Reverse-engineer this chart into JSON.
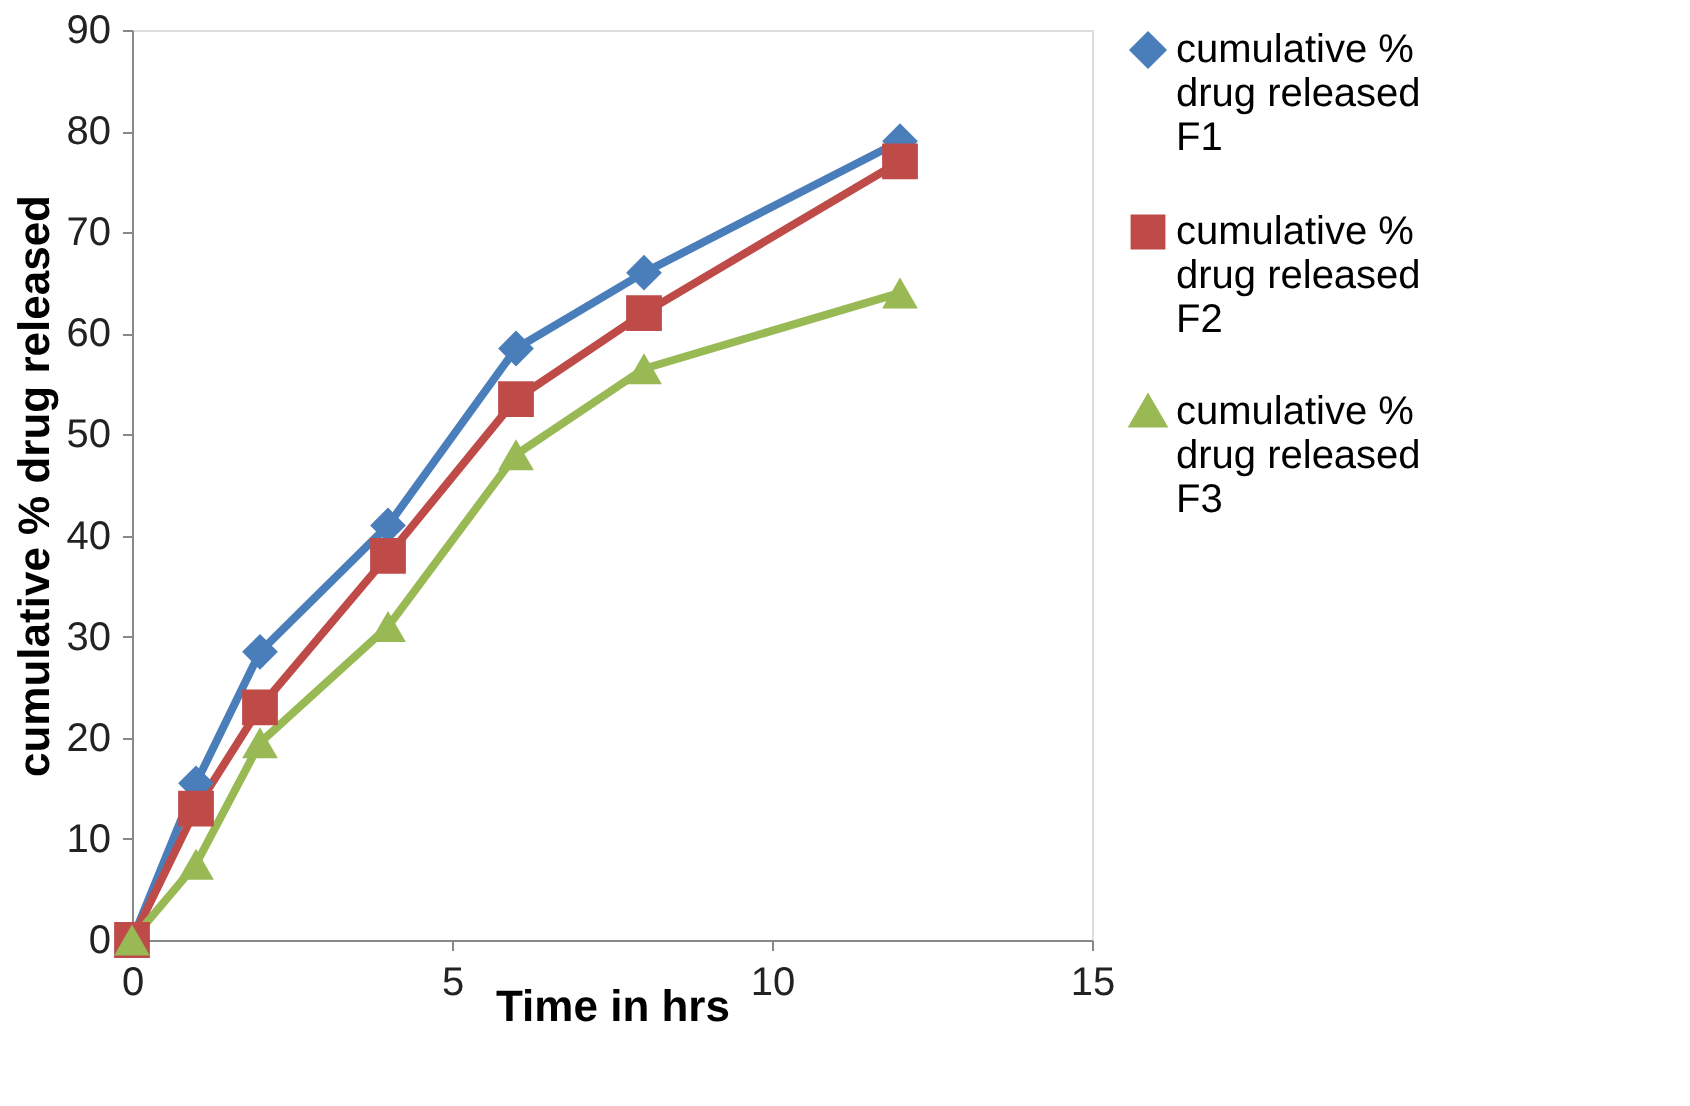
{
  "chart_data": {
    "type": "line",
    "xlabel": "Time in hrs",
    "ylabel": "cumulative % drug released",
    "x": [
      0,
      1,
      2,
      4,
      6,
      8,
      12
    ],
    "series": [
      {
        "name": "cumulative % drug released F1",
        "color": "#4a7ebb",
        "marker": "diamond",
        "values": [
          0,
          15.5,
          28.5,
          41,
          58.5,
          66,
          79
        ]
      },
      {
        "name": "cumulative % drug released F2",
        "color": "#be4b48",
        "marker": "square",
        "values": [
          0,
          13,
          23,
          38,
          53.5,
          62,
          77
        ]
      },
      {
        "name": "cumulative % drug released F3",
        "color": "#98b954",
        "marker": "triangle",
        "values": [
          0,
          7.5,
          19.5,
          31,
          48,
          56.5,
          64
        ]
      }
    ],
    "xlim": [
      0,
      15
    ],
    "xticks": [
      0,
      5,
      10,
      15
    ],
    "ylim": [
      0,
      90
    ],
    "yticks": [
      0,
      10,
      20,
      30,
      40,
      50,
      60,
      70,
      80,
      90
    ],
    "grid": false,
    "legend": "right",
    "line_style": "solid"
  }
}
